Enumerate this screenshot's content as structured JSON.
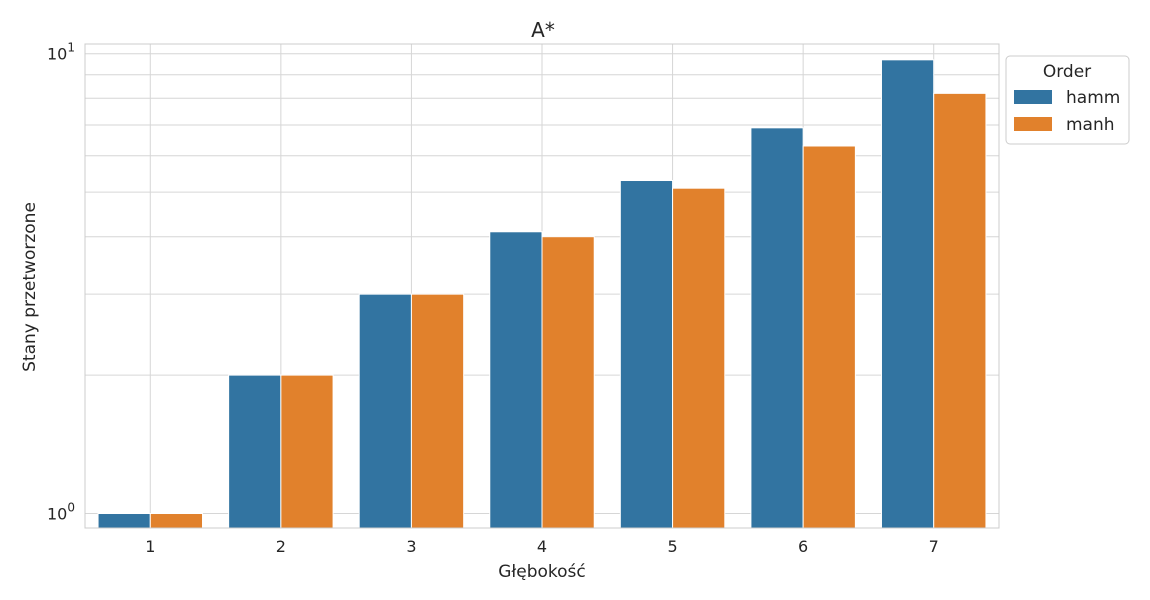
{
  "chart_data": {
    "type": "bar",
    "title": "A*",
    "xlabel": "Głębokość",
    "ylabel": "Stany przetworzone",
    "yscale": "log",
    "ylim": [
      0.93,
      10.5
    ],
    "y_ticks": [
      {
        "value": 1,
        "base": "10",
        "exp": "0"
      },
      {
        "value": 10,
        "base": "10",
        "exp": "1"
      }
    ],
    "categories": [
      "1",
      "2",
      "3",
      "4",
      "5",
      "6",
      "7"
    ],
    "series": [
      {
        "name": "hamm",
        "color": "#3274a1",
        "values": [
          1.0,
          2.0,
          3.0,
          4.1,
          5.3,
          6.9,
          9.7
        ]
      },
      {
        "name": "manh",
        "color": "#e1812c",
        "values": [
          1.0,
          2.0,
          3.0,
          4.0,
          5.1,
          6.3,
          8.2
        ]
      }
    ],
    "legend": {
      "title": "Order",
      "placement": "outside-top-right"
    },
    "grid": true
  }
}
